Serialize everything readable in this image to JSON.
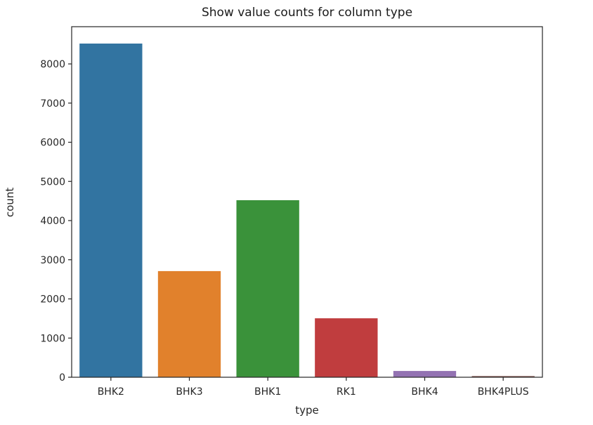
{
  "chart_data": {
    "type": "bar",
    "title": "Show value counts for column type",
    "xlabel": "type",
    "ylabel": "count",
    "categories": [
      "BHK2",
      "BHK3",
      "BHK1",
      "RK1",
      "BHK4",
      "BHK4PLUS"
    ],
    "values": [
      8520,
      2710,
      4520,
      1505,
      160,
      30
    ],
    "colors": [
      "#3274a1",
      "#e1812c",
      "#3a923a",
      "#c03d3e",
      "#9372b2",
      "#845b53"
    ],
    "yticks": [
      0,
      1000,
      2000,
      3000,
      4000,
      5000,
      6000,
      7000,
      8000
    ],
    "ytick_labels": [
      "0",
      "1000",
      "2000",
      "3000",
      "4000",
      "5000",
      "6000",
      "7000",
      "8000"
    ],
    "ylim": [
      0,
      8950
    ],
    "grid": false,
    "legend": null
  }
}
